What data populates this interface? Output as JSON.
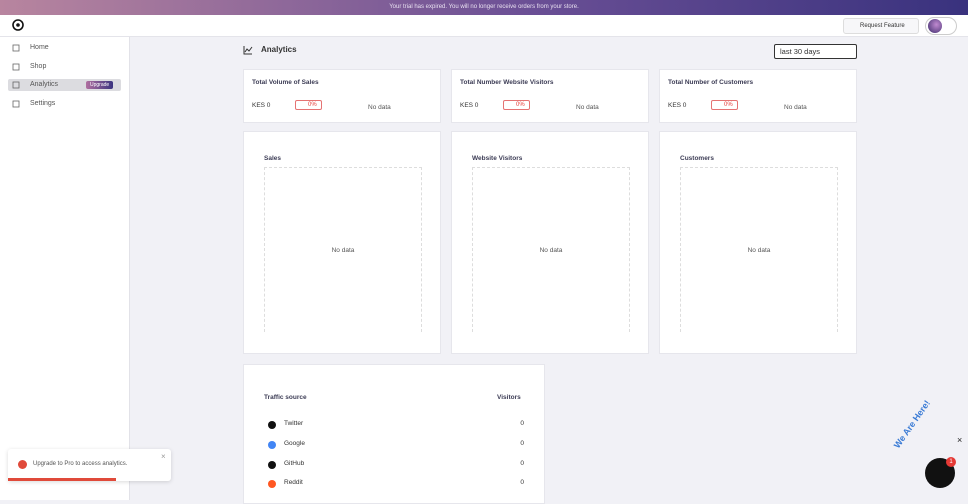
{
  "banner": "Your trial has expired. You will no longer receive orders from your store.",
  "header": {
    "request_feature": "Request Feature"
  },
  "sidebar": {
    "items": [
      "Home",
      "Shop",
      "Analytics",
      "Settings"
    ],
    "badge": "Upgrade"
  },
  "page": {
    "title": "Analytics",
    "range": "last 30 days"
  },
  "stats": [
    {
      "title": "Total Volume of Sales",
      "value": "KES 0",
      "change": "0%",
      "empty": "No data"
    },
    {
      "title": "Total Number Website Visitors",
      "value": "KES 0",
      "change": "0%",
      "empty": "No data"
    },
    {
      "title": "Total Number of Customers",
      "value": "KES 0",
      "change": "0%",
      "empty": "No data"
    }
  ],
  "charts": [
    {
      "title": "Sales",
      "empty": "No data"
    },
    {
      "title": "Website Visitors",
      "empty": "No data"
    },
    {
      "title": "Customers",
      "empty": "No data"
    }
  ],
  "traffic": {
    "columns": [
      "Traffic source",
      "Visitors"
    ],
    "rows": [
      [
        "Twitter",
        0
      ],
      [
        "Google",
        0
      ],
      [
        "GitHub",
        0
      ],
      [
        "Reddit",
        0
      ]
    ]
  },
  "toast": "Upgrade to Pro to access analytics.",
  "chat": {
    "label": "We Are Here!",
    "badge": "1"
  }
}
